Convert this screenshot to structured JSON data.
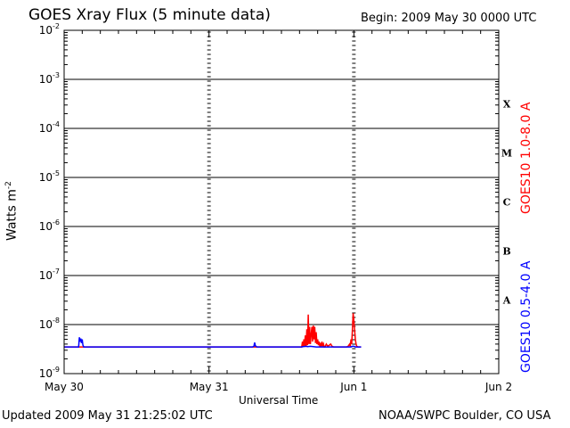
{
  "header": {
    "title": "GOES Xray Flux (5 minute data)",
    "begin": "Begin:  2009 May 30 0000 UTC"
  },
  "footer": {
    "updated": "Updated 2009 May 31 21:25:02 UTC",
    "credit": "NOAA/SWPC Boulder, CO USA"
  },
  "colors": {
    "long": "#ff0000",
    "short": "#0000ff",
    "axes": "#000000"
  },
  "chart_data": {
    "type": "line",
    "title": "GOES Xray Flux (5 minute data)",
    "xlabel": "Universal Time",
    "ylabel_base": "Watts m",
    "ylabel_exp": "-2",
    "yscale": "log",
    "xlim": [
      0,
      3
    ],
    "ylim": [
      1e-09,
      0.01
    ],
    "x_ticks": [
      {
        "x": 0,
        "label": "May 30"
      },
      {
        "x": 1,
        "label": "May 31"
      },
      {
        "x": 2,
        "label": "Jun 1"
      },
      {
        "x": 3,
        "label": "Jun 2"
      }
    ],
    "y_ticks": [
      {
        "exp": -9,
        "label": "10",
        "sup": "-9"
      },
      {
        "exp": -8,
        "label": "10",
        "sup": "-8"
      },
      {
        "exp": -7,
        "label": "10",
        "sup": "-7"
      },
      {
        "exp": -6,
        "label": "10",
        "sup": "-6"
      },
      {
        "exp": -5,
        "label": "10",
        "sup": "-5"
      },
      {
        "exp": -4,
        "label": "10",
        "sup": "-4"
      },
      {
        "exp": -3,
        "label": "10",
        "sup": "-3"
      },
      {
        "exp": -2,
        "label": "10",
        "sup": "-2"
      }
    ],
    "flare_classes": [
      {
        "label": "A",
        "exp": -8
      },
      {
        "label": "B",
        "exp": -7
      },
      {
        "label": "C",
        "exp": -6
      },
      {
        "label": "M",
        "exp": -5
      },
      {
        "label": "X",
        "exp": -4
      }
    ],
    "grid_horizontal": true,
    "series": [
      {
        "name": "GOES10 1.0-8.0 A",
        "color": "#ff0000",
        "x": [
          0,
          1.5,
          1.64,
          1.645,
          1.65,
          1.655,
          1.66,
          1.665,
          1.67,
          1.675,
          1.68,
          1.685,
          1.69,
          1.695,
          1.7,
          1.705,
          1.71,
          1.715,
          1.72,
          1.725,
          1.73,
          1.735,
          1.74,
          1.745,
          1.75,
          1.755,
          1.76,
          1.765,
          1.77,
          1.775,
          1.78,
          1.785,
          1.79,
          1.795,
          1.8,
          1.81,
          1.82,
          1.84,
          1.85,
          1.86,
          1.87,
          1.88,
          1.89,
          1.9,
          1.91,
          1.92,
          1.93,
          1.94,
          1.95,
          1.96,
          1.97,
          1.975,
          1.98,
          1.985,
          1.99,
          1.995,
          2.0,
          2.005,
          2.01,
          2.015,
          2.02,
          2.03,
          2.04,
          2.05
        ],
        "y": [
          3.5e-09,
          3.5e-09,
          3.5e-09,
          4.5e-09,
          3.5e-09,
          5e-09,
          3.6e-09,
          6e-09,
          3.6e-09,
          8e-09,
          3.8e-09,
          1.6e-08,
          4e-09,
          9e-09,
          4e-09,
          6e-09,
          9e-09,
          4.5e-09,
          9.5e-09,
          5e-09,
          9e-09,
          4.2e-09,
          7e-09,
          4e-09,
          5e-09,
          3.8e-09,
          4.5e-09,
          3.6e-09,
          4.2e-09,
          3.6e-09,
          4.5e-09,
          3.6e-09,
          4e-09,
          3.5e-09,
          3.5e-09,
          4e-09,
          3.6e-09,
          4e-09,
          3.6e-09,
          3.5e-09,
          3.5e-09,
          3.5e-09,
          3.5e-09,
          3.5e-09,
          3.5e-09,
          3.5e-09,
          3.5e-09,
          3.5e-09,
          3.5e-09,
          3.6e-09,
          4e-09,
          3.6e-09,
          5e-09,
          4e-09,
          8e-09,
          1.7e-08,
          1.2e-08,
          8e-09,
          5e-09,
          4e-09,
          3.6e-09,
          3.5e-09,
          3.5e-09,
          3.5e-09
        ]
      },
      {
        "name": "GOES10 0.5-4.0 A",
        "color": "#0000ff",
        "x": [
          0,
          0.1,
          0.105,
          0.11,
          0.115,
          0.12,
          0.125,
          0.13,
          0.135,
          1.3,
          1.31,
          1.315,
          1.32,
          1.33,
          1.64,
          1.65,
          1.67,
          1.68,
          1.7,
          1.72,
          1.74,
          1.76,
          1.98,
          1.99,
          2.0,
          2.01,
          2.05
        ],
        "y": [
          3.5e-09,
          3.5e-09,
          5.5e-09,
          4.5e-09,
          5.2e-09,
          4.2e-09,
          5e-09,
          3.8e-09,
          3.5e-09,
          3.5e-09,
          3.6e-09,
          4.3e-09,
          3.7e-09,
          3.5e-09,
          3.5e-09,
          3.55e-09,
          3.6e-09,
          3.55e-09,
          3.6e-09,
          3.55e-09,
          3.5e-09,
          3.5e-09,
          3.5e-09,
          3.6e-09,
          3.6e-09,
          3.5e-09,
          3.5e-09
        ]
      }
    ]
  }
}
